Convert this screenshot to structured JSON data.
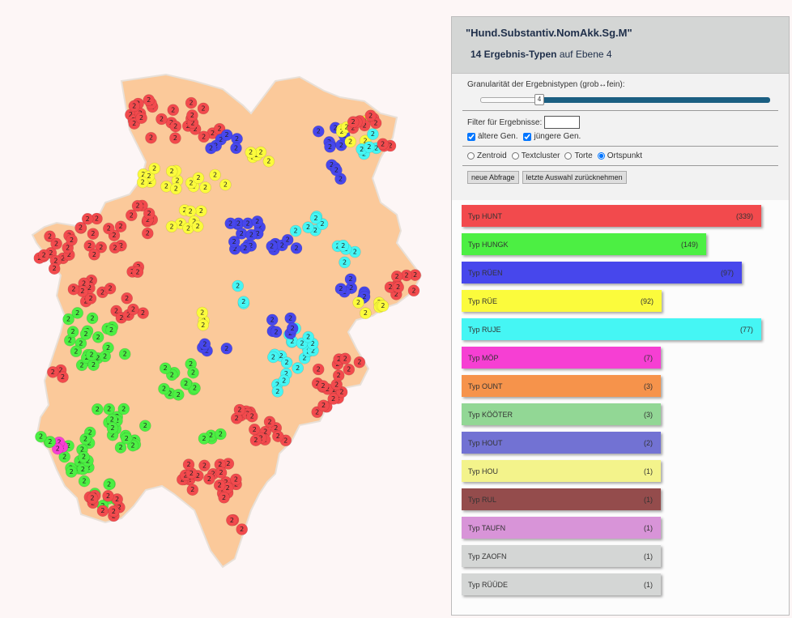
{
  "panel": {
    "query": "\"Hund.Substantiv.NomAkk.Sg.M\"",
    "summary_count": "14 Ergebnis-Typen",
    "summary_rest": "auf Ebene 4",
    "granularity_label": "Granularität der Ergebnistypen (grob↔fein):",
    "granularity_value": "4",
    "granularity_level": 4,
    "filter_label": "Filter für Ergebnisse:",
    "filter_value": "",
    "older_gen": "ältere Gen.",
    "younger_gen": "jüngere Gen.",
    "radio_zentroid": "Zentroid",
    "radio_textcluster": "Textcluster",
    "radio_torte": "Torte",
    "radio_ortspunkt": "Ortspunkt",
    "btn_new": "neue Abfrage",
    "btn_undo": "letzte Auswahl zurücknehmen"
  },
  "legend": [
    {
      "label": "Typ HUNT",
      "count": "(339)",
      "color": "#f24a4d"
    },
    {
      "label": "Typ HUNGK",
      "count": "(149)",
      "color": "#4cef43"
    },
    {
      "label": "Typ RÜEN",
      "count": "(97)",
      "color": "#4747ec"
    },
    {
      "label": "Typ RÜE",
      "count": "(92)",
      "color": "#fbfb3c"
    },
    {
      "label": "Typ RUJE",
      "count": "(77)",
      "color": "#45f6f4"
    },
    {
      "label": "Typ MÖP",
      "count": "(7)",
      "color": "#f63fd3"
    },
    {
      "label": "Typ OUNT",
      "count": "(3)",
      "color": "#f6934b"
    },
    {
      "label": "Typ KÖÖTER",
      "count": "(3)",
      "color": "#92d795"
    },
    {
      "label": "Typ HOUT",
      "count": "(2)",
      "color": "#7272d3"
    },
    {
      "label": "Typ HOU",
      "count": "(1)",
      "color": "#f3f38b"
    },
    {
      "label": "Typ RUL",
      "count": "(1)",
      "color": "#944c4c"
    },
    {
      "label": "Typ TAUFN",
      "count": "(1)",
      "color": "#d894d8"
    },
    {
      "label": "Typ ZAOFN",
      "count": "(1)",
      "color": "#d4d6d5"
    },
    {
      "label": "Typ RÜÜDE",
      "count": "(1)",
      "color": "#d4d6d5"
    }
  ],
  "map": {
    "region_color": "#fbc99a",
    "marker_label": "2"
  }
}
